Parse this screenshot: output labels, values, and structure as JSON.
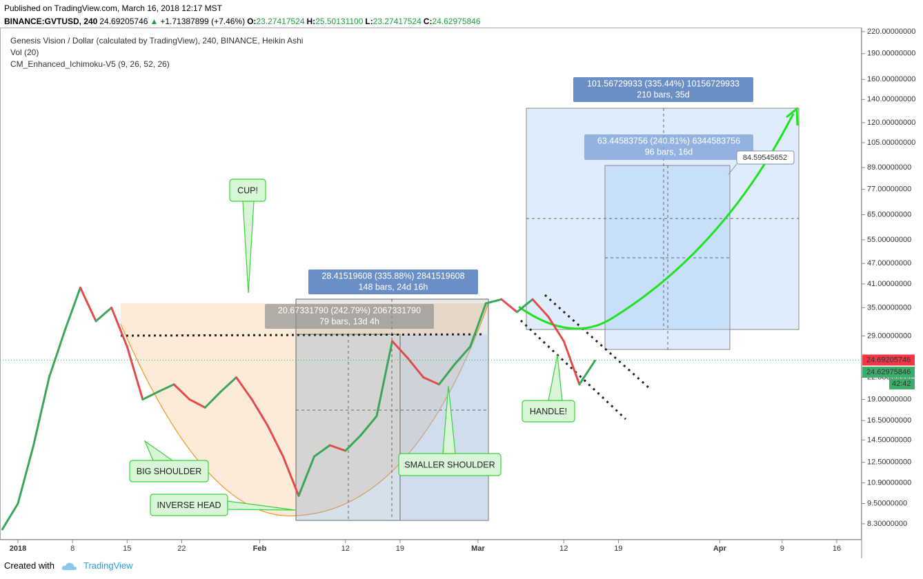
{
  "header": {
    "published": "Published on TradingView.com, March 16, 2018 12:17 MST",
    "symbol": "BINANCE:GVTUSD, 240",
    "last": "24.69205746",
    "arrow": "▲",
    "change": "+1.71387899 (+7.46%)",
    "o_label": "O:",
    "o": "23.27417524",
    "h_label": "H:",
    "h": "25.50131100",
    "l_label": "L:",
    "l": "23.27417524",
    "c_label": "C:",
    "c": "24.62975846"
  },
  "footer": {
    "created": "Created with",
    "brand": "TradingView"
  },
  "chart_data": {
    "type": "line",
    "title": "Genesis Vision / Dollar (calculated by TradingView), 240, BINANCE, Heikin Ashi",
    "indicators": [
      "Vol (20)",
      "CM_Enhanced_Ichimoku-V5 (9, 26, 52, 26)"
    ],
    "log_scale": true,
    "x": [
      -2,
      0,
      2,
      4,
      6,
      8,
      10,
      12,
      14,
      16,
      18,
      20,
      22,
      24,
      26,
      28,
      30,
      32,
      34,
      36,
      38,
      40,
      42,
      44,
      46,
      48,
      50,
      52,
      54,
      56,
      58,
      60,
      62,
      64,
      66,
      68,
      70,
      72,
      74
    ],
    "series": [
      {
        "up_color": "#3aa757",
        "down_color": "#e34a4a",
        "values": [
          8.0,
          9.5,
          14,
          22,
          30,
          40,
          32,
          35,
          27,
          19,
          20,
          21,
          19,
          18,
          20,
          22,
          19,
          16,
          13,
          10,
          13,
          14,
          13.5,
          15,
          17,
          28,
          25,
          22,
          21,
          24,
          27,
          36,
          37,
          34,
          37,
          33,
          28,
          21,
          24.6
        ]
      }
    ],
    "xlim": [
      -2.3,
      108.1
    ],
    "xticks": [
      {
        "value": 0,
        "label": "2018"
      },
      {
        "value": 7,
        "label": "8"
      },
      {
        "value": 14,
        "label": "15"
      },
      {
        "value": 21,
        "label": "22"
      },
      {
        "value": 31,
        "label": "Feb"
      },
      {
        "value": 42,
        "label": "12"
      },
      {
        "value": 49,
        "label": "19"
      },
      {
        "value": 59,
        "label": "Mar"
      },
      {
        "value": 70,
        "label": "12"
      },
      {
        "value": 77,
        "label": "19"
      },
      {
        "value": 90,
        "label": "Apr"
      },
      {
        "value": 98,
        "label": "9"
      },
      {
        "value": 105,
        "label": "16"
      }
    ],
    "ylim": [
      7.5,
      226
    ],
    "yticks": [
      {
        "value": 220,
        "label": "220.00000000"
      },
      {
        "value": 190,
        "label": "190.00000000"
      },
      {
        "value": 160,
        "label": "160.00000000"
      },
      {
        "value": 140,
        "label": "140.00000000"
      },
      {
        "value": 120,
        "label": "120.00000000"
      },
      {
        "value": 105,
        "label": "105.00000000"
      },
      {
        "value": 89,
        "label": "89.00000000"
      },
      {
        "value": 77,
        "label": "77.00000000"
      },
      {
        "value": 65,
        "label": "65.00000000"
      },
      {
        "value": 55,
        "label": "55.00000000"
      },
      {
        "value": 47,
        "label": "47.00000000"
      },
      {
        "value": 41,
        "label": "41.00000000"
      },
      {
        "value": 35,
        "label": "35.00000000"
      },
      {
        "value": 29,
        "label": "29.00000000"
      },
      {
        "value": 22,
        "label": "22.00000000"
      },
      {
        "value": 19,
        "label": "19.00000000"
      },
      {
        "value": 16.5,
        "label": "16.50000000"
      },
      {
        "value": 14.5,
        "label": "14.50000000"
      },
      {
        "value": 12.5,
        "label": "12.50000000"
      },
      {
        "value": 10.9,
        "label": "10.90000000"
      },
      {
        "value": 9.5,
        "label": "9.50000000"
      },
      {
        "value": 8.3,
        "label": "8.30000000"
      }
    ],
    "price_labels": [
      {
        "value": 24.69205746,
        "label": "24.69205746",
        "color": "#f23645"
      },
      {
        "value": 24.62975846,
        "label": "24.62975846",
        "color": "#3cae6c"
      }
    ],
    "countdown": "42:42",
    "annotations": [
      "CUP!",
      "BIG SHOULDER",
      "INVERSE HEAD",
      "SMALLER SHOULDER",
      "HANDLE!"
    ],
    "measurements": [
      {
        "lines": [
          "101.56729933 (335.44%) 10156729933",
          "210 bars, 35d"
        ]
      },
      {
        "lines": [
          "63.44583756 (240.81%) 6344583756",
          "96 bars, 16d"
        ]
      },
      {
        "lines": [
          "28.41519608 (335.88%) 2841519608",
          "148 bars, 24d 16h"
        ]
      },
      {
        "lines": [
          "20.67331790 (242.79%) 2067331790",
          "79 bars, 13d 4h"
        ]
      }
    ],
    "target_label": "84.59545652"
  }
}
